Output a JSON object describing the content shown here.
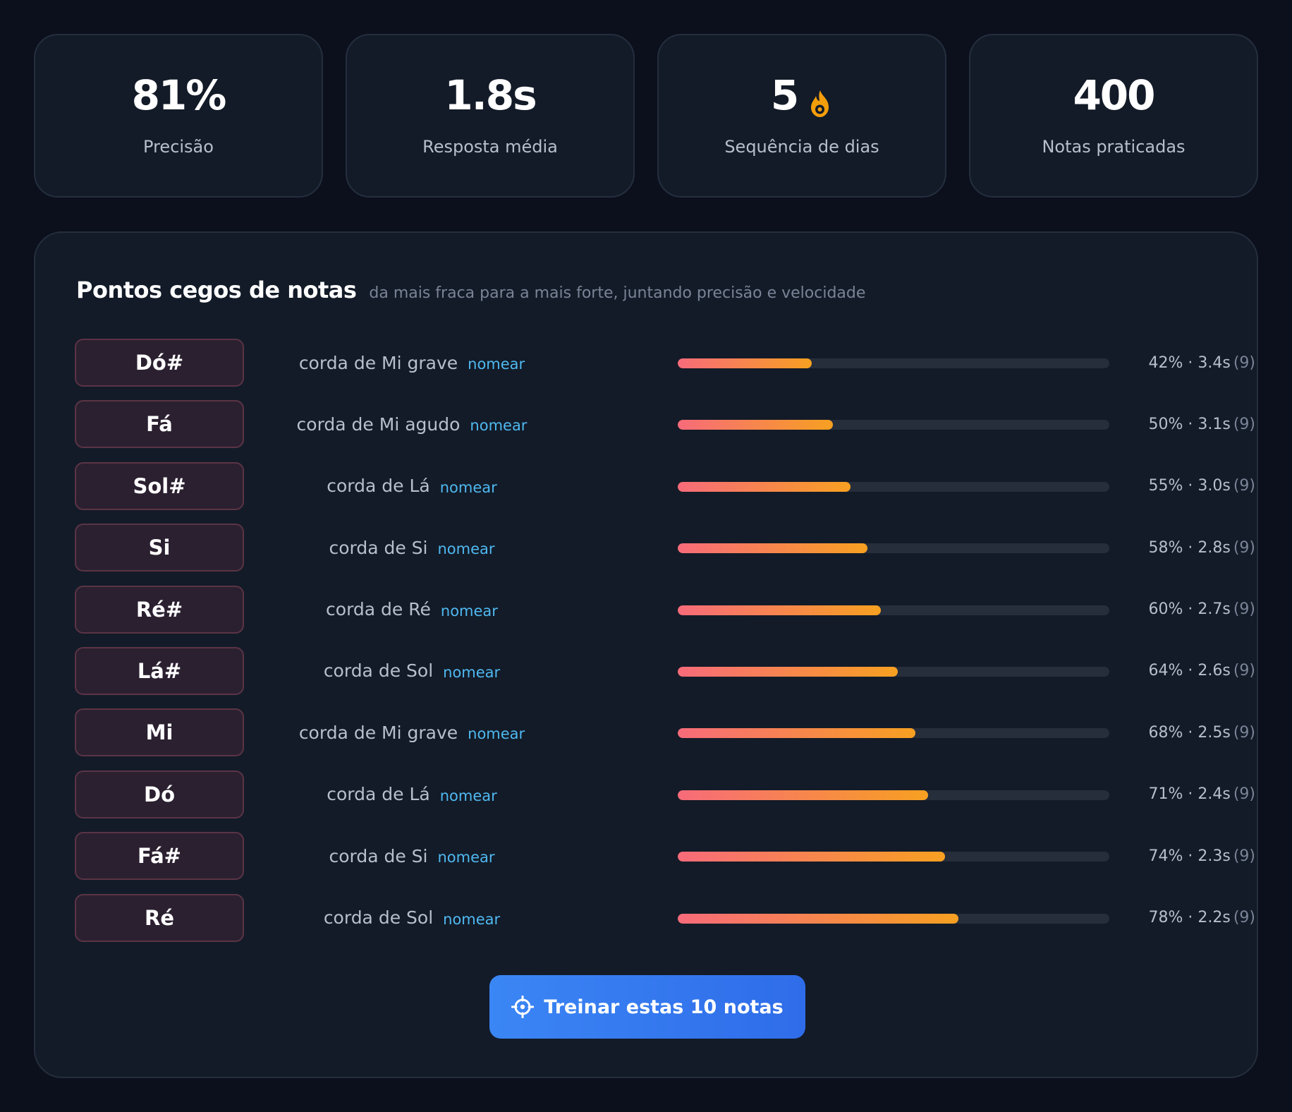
{
  "stats": [
    {
      "value": "81%",
      "label": "Precisão"
    },
    {
      "value": "1.8s",
      "label": "Resposta média"
    },
    {
      "value": "5",
      "label": "Sequência de dias",
      "icon": "flame-icon"
    },
    {
      "value": "400",
      "label": "Notas praticadas"
    }
  ],
  "panel": {
    "title": "Pontos cegos de notas",
    "subtitle": "da mais fraca para a mais forte, juntando precisão e velocidade"
  },
  "rows": [
    {
      "note": "Dó#",
      "string": "corda de Mi grave",
      "link": "nomear",
      "accuracy": 0.31,
      "stat": "42% · 3.4s",
      "count": "(9)"
    },
    {
      "note": "Fá",
      "string": "corda de Mi agudo",
      "link": "nomear",
      "accuracy": 0.36,
      "stat": "50% · 3.1s",
      "count": "(9)"
    },
    {
      "note": "Sol#",
      "string": "corda de Lá",
      "link": "nomear",
      "accuracy": 0.4,
      "stat": "55% · 3.0s",
      "count": "(9)"
    },
    {
      "note": "Si",
      "string": "corda de Si",
      "link": "nomear",
      "accuracy": 0.44,
      "stat": "58% · 2.8s",
      "count": "(9)"
    },
    {
      "note": "Ré#",
      "string": "corda de Ré",
      "link": "nomear",
      "accuracy": 0.47,
      "stat": "60% · 2.7s",
      "count": "(9)"
    },
    {
      "note": "Lá#",
      "string": "corda de Sol",
      "link": "nomear",
      "accuracy": 0.51,
      "stat": "64% · 2.6s",
      "count": "(9)"
    },
    {
      "note": "Mi",
      "string": "corda de Mi grave",
      "link": "nomear",
      "accuracy": 0.55,
      "stat": "68% · 2.5s",
      "count": "(9)"
    },
    {
      "note": "Dó",
      "string": "corda de Lá",
      "link": "nomear",
      "accuracy": 0.58,
      "stat": "71% · 2.4s",
      "count": "(9)"
    },
    {
      "note": "Fá#",
      "string": "corda de Si",
      "link": "nomear",
      "accuracy": 0.62,
      "stat": "74% · 2.3s",
      "count": "(9)"
    },
    {
      "note": "Ré",
      "string": "corda de Sol",
      "link": "nomear",
      "accuracy": 0.65,
      "stat": "78% · 2.2s",
      "count": "(9)"
    }
  ],
  "button": {
    "label": "Treinar estas 10 notas",
    "icon": "target-icon"
  },
  "colors": {
    "background": "#0b101c",
    "card": "#131b28",
    "bar_start": "#f76b7a",
    "bar_end": "#f7a021",
    "link": "#4fb8f0",
    "button": "#3b86f5",
    "flame": "#f59e0b"
  }
}
